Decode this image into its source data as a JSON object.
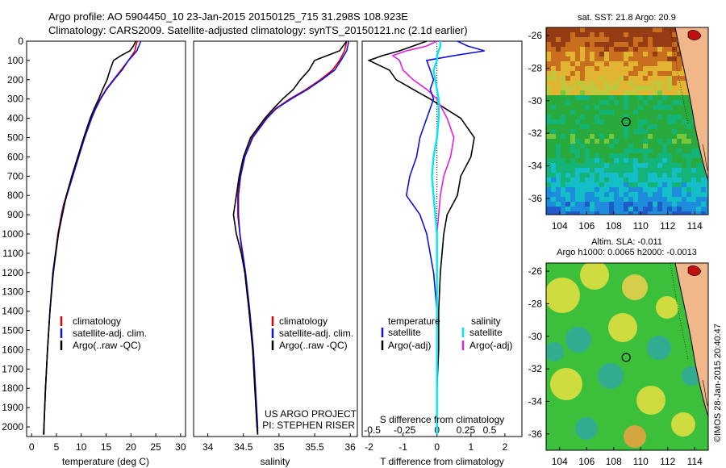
{
  "header": {
    "line1": "Argo profile: AO 5904450_10 23-Jan-2015 20150125_715 31.298S 108.923E",
    "line2": "Climatology: CARS2009. Satellite-adjusted climatology: synTS_20150121.nc (2.1d earlier)"
  },
  "colors": {
    "climatology": "#e00000",
    "satellite": "#1010e0",
    "argo": "#000000",
    "sal_satellite": "#00e8f0",
    "sal_argo": "#e020e0"
  },
  "depth_ticks": [
    0,
    100,
    200,
    300,
    400,
    500,
    600,
    700,
    800,
    900,
    1000,
    1100,
    1200,
    1300,
    1400,
    1500,
    1600,
    1700,
    1800,
    1900,
    2000
  ],
  "chart_data": [
    {
      "type": "line",
      "xlabel": "temperature (deg C)",
      "ylim": [
        2050,
        0
      ],
      "xlim": [
        -1,
        31
      ],
      "xticks": [
        "0",
        "5",
        "10",
        "15",
        "20",
        "25",
        "30"
      ],
      "xtick_values": [
        0,
        5,
        10,
        15,
        20,
        25,
        30
      ],
      "legend": [
        "climatology",
        "satellite-adj. clim.",
        "Argo(..raw -QC)"
      ],
      "depth": [
        0,
        25,
        50,
        75,
        100,
        150,
        200,
        250,
        300,
        350,
        400,
        500,
        600,
        700,
        800,
        850,
        900,
        1000,
        1200,
        1400,
        1600,
        1800,
        2000,
        2040
      ],
      "series": [
        {
          "name": "climatology",
          "values": [
            21.3,
            21.0,
            20.8,
            20.2,
            19.5,
            18.0,
            16.5,
            15.0,
            13.8,
            12.8,
            12.0,
            10.6,
            9.4,
            8.2,
            7.0,
            6.4,
            6.0,
            5.3,
            4.3,
            3.7,
            3.2,
            2.8,
            2.5,
            2.4
          ]
        },
        {
          "name": "satellite-adj. clim.",
          "values": [
            22.0,
            21.6,
            21.2,
            20.4,
            19.5,
            18.2,
            16.6,
            15.1,
            13.9,
            12.9,
            12.1,
            10.7,
            9.5,
            8.3,
            7.1,
            6.5,
            6.1,
            5.4,
            4.4,
            3.7,
            3.2,
            2.8,
            2.5,
            2.4
          ]
        },
        {
          "name": "Argo(..raw -QC)",
          "values": [
            21.0,
            20.5,
            19.8,
            18.0,
            16.5,
            15.8,
            15.2,
            14.3,
            13.5,
            12.6,
            11.8,
            10.5,
            9.3,
            8.1,
            7.0,
            6.6,
            6.2,
            5.4,
            4.3,
            3.7,
            3.2,
            2.8,
            2.5,
            2.5
          ]
        }
      ]
    },
    {
      "type": "line",
      "xlabel": "salinity",
      "ylim": [
        2050,
        0
      ],
      "xlim": [
        33.8,
        36.1
      ],
      "xticks": [
        "34",
        "34.5",
        "35",
        "35.5",
        "36"
      ],
      "xtick_values": [
        34,
        34.5,
        35,
        35.5,
        36
      ],
      "legend": [
        "climatology",
        "satellite-adj. clim.",
        "Argo(..raw -QC)"
      ],
      "annotations": [
        "US ARGO PROJECT",
        "PI: STEPHEN RISER"
      ],
      "depth": [
        0,
        50,
        100,
        150,
        200,
        250,
        300,
        350,
        400,
        500,
        600,
        700,
        800,
        900,
        1000,
        1100,
        1200,
        1400,
        1600,
        1800,
        2000,
        2040
      ],
      "series": [
        {
          "name": "climatology",
          "values": [
            35.95,
            35.92,
            35.85,
            35.75,
            35.58,
            35.38,
            35.15,
            34.95,
            34.82,
            34.62,
            34.52,
            34.45,
            34.42,
            34.42,
            34.45,
            34.48,
            34.52,
            34.58,
            34.63,
            34.66,
            34.69,
            34.7
          ]
        },
        {
          "name": "satellite-adj. clim.",
          "values": [
            35.98,
            35.95,
            35.87,
            35.78,
            35.6,
            35.4,
            35.17,
            34.96,
            34.83,
            34.63,
            34.52,
            34.46,
            34.43,
            34.43,
            34.45,
            34.49,
            34.53,
            34.59,
            34.64,
            34.67,
            34.7,
            34.7
          ]
        },
        {
          "name": "Argo(..raw -QC)",
          "values": [
            35.95,
            35.85,
            35.5,
            35.42,
            35.3,
            35.2,
            35.05,
            34.92,
            34.8,
            34.6,
            34.5,
            34.44,
            34.4,
            34.36,
            34.4,
            34.47,
            34.52,
            34.58,
            34.63,
            34.66,
            34.69,
            34.7
          ]
        }
      ]
    },
    {
      "type": "line",
      "xlabel": "T difference from climatology",
      "xlabel_top": "S difference from climatology",
      "ylim": [
        2050,
        0
      ],
      "xlim": [
        -2.2,
        2.5
      ],
      "xticks": [
        "-2",
        "-1",
        "0",
        "1",
        "2"
      ],
      "xtick_values": [
        -2,
        -1,
        0,
        1,
        2
      ],
      "top_ticks": [
        "-0.5",
        "-0.25",
        "0",
        "0.25",
        "0.5"
      ],
      "top_tick_values": [
        -1.9,
        -0.95,
        0,
        0.85,
        1.55
      ],
      "legend_headers": [
        "temperature",
        "salinity"
      ],
      "legend": [
        "satellite",
        "Argo(-adj)",
        "satellite",
        "Argo(-adj)"
      ],
      "depth": [
        0,
        25,
        50,
        75,
        100,
        150,
        200,
        250,
        300,
        400,
        500,
        600,
        700,
        800,
        900,
        1000,
        1200,
        1400,
        1600,
        1800,
        2000,
        2040
      ],
      "series": [
        {
          "name": "temperature satellite",
          "values": [
            0.6,
            0.9,
            1.4,
            0.5,
            -0.3,
            -0.2,
            -0.1,
            -0.2,
            -0.1,
            -0.3,
            -0.5,
            -0.6,
            -0.8,
            -0.9,
            -0.5,
            -0.3,
            -0.1,
            0,
            0,
            0,
            0,
            0
          ]
        },
        {
          "name": "temperature Argo(-adj)",
          "values": [
            -0.3,
            -0.7,
            -1.1,
            -1.6,
            -2.0,
            -1.4,
            -1.2,
            -0.7,
            -0.2,
            0.7,
            1.1,
            1.0,
            0.7,
            0.6,
            0.3,
            0.2,
            0.1,
            0.05,
            0.05,
            0,
            0,
            0
          ]
        },
        {
          "name": "salinity satellite",
          "values": [
            0.1,
            0.1,
            0.05,
            0,
            0,
            -0.1,
            -0.05,
            0,
            0.05,
            0.05,
            0,
            -0.1,
            -0.15,
            -0.1,
            -0.05,
            0,
            0,
            0,
            0,
            0,
            0,
            0
          ]
        },
        {
          "name": "salinity Argo(-adj)",
          "values": [
            0,
            -0.3,
            -0.9,
            -1.3,
            -1.1,
            -1.0,
            -0.7,
            -0.3,
            0,
            0.3,
            0.5,
            0.4,
            0.2,
            0.1,
            0.05,
            0,
            0,
            0,
            0,
            0,
            0,
            0
          ]
        }
      ]
    },
    {
      "type": "heatmap",
      "title": "sat. SST: 21.8 Argo: 20.9",
      "xticks": [
        "104",
        "106",
        "108",
        "110",
        "112",
        "114"
      ],
      "yticks": [
        "-26",
        "-28",
        "-30",
        "-32",
        "-34",
        "-36"
      ],
      "xlim": [
        103,
        115
      ],
      "ylim": [
        -37,
        -25.5
      ],
      "marker": [
        108.923,
        -31.298
      ]
    },
    {
      "type": "heatmap",
      "title_line1": "Altim. SLA: -0.011",
      "title_line2": "Argo h1000: 0.0065 h2000: -0.0013",
      "xticks": [
        "104",
        "106",
        "108",
        "110",
        "112",
        "114"
      ],
      "yticks": [
        "-26",
        "-28",
        "-30",
        "-32",
        "-34",
        "-36"
      ],
      "xlim": [
        103,
        115
      ],
      "ylim": [
        -37,
        -25.5
      ],
      "marker": [
        108.923,
        -31.298
      ]
    }
  ],
  "credit": "©IMOS 28-Jan-2015 20:40:47"
}
